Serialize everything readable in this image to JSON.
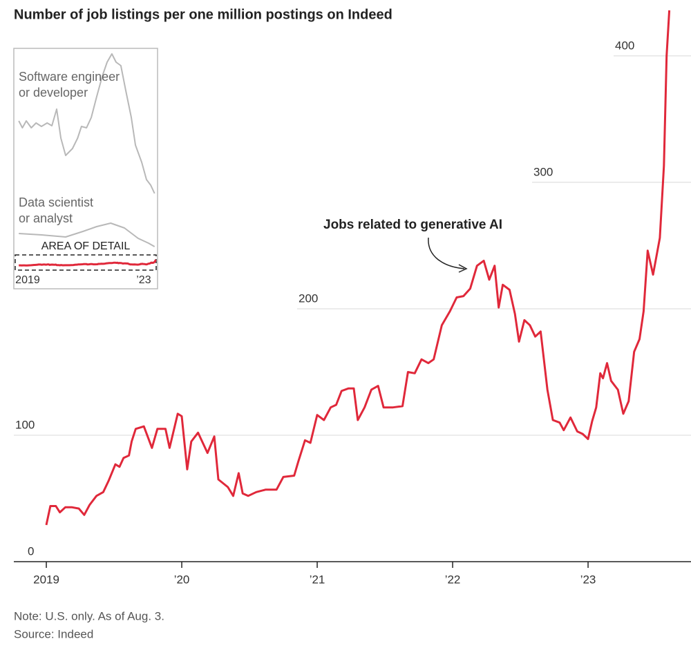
{
  "chart_data": [
    {
      "type": "line",
      "title": "Number of job listings per one million postings on Indeed",
      "note": "Note: U.S. only. As of Aug. 3.",
      "source": "Source: Indeed",
      "x": [
        2019.0,
        2019.03,
        2019.07,
        2019.1,
        2019.14,
        2019.19,
        2019.24,
        2019.28,
        2019.32,
        2019.37,
        2019.42,
        2019.46,
        2019.51,
        2019.54,
        2019.57,
        2019.61,
        2019.63,
        2019.66,
        2019.72,
        2019.78,
        2019.82,
        2019.88,
        2019.91,
        2019.97,
        2020.0,
        2020.04,
        2020.07,
        2020.12,
        2020.19,
        2020.24,
        2020.27,
        2020.34,
        2020.38,
        2020.42,
        2020.45,
        2020.49,
        2020.55,
        2020.62,
        2020.7,
        2020.75,
        2020.83,
        2020.86,
        2020.91,
        2020.95,
        2021.0,
        2021.05,
        2021.1,
        2021.14,
        2021.18,
        2021.23,
        2021.27,
        2021.3,
        2021.35,
        2021.4,
        2021.45,
        2021.49,
        2021.56,
        2021.63,
        2021.67,
        2021.72,
        2021.77,
        2021.82,
        2021.86,
        2021.92,
        2021.98,
        2022.03,
        2022.08,
        2022.13,
        2022.18,
        2022.23,
        2022.27,
        2022.31,
        2022.34,
        2022.37,
        2022.42,
        2022.46,
        2022.49,
        2022.53,
        2022.57,
        2022.61,
        2022.65,
        2022.7,
        2022.74,
        2022.79,
        2022.82,
        2022.87,
        2022.92,
        2022.96,
        2023.0,
        2023.03,
        2023.06,
        2023.09,
        2023.11,
        2023.14,
        2023.17,
        2023.22,
        2023.26,
        2023.3,
        2023.34,
        2023.38,
        2023.41,
        2023.44,
        2023.48,
        2023.53,
        2023.56,
        2023.58,
        2023.6
      ],
      "series": [
        {
          "name": "Jobs related to generative AI",
          "color": "#e0283a",
          "values": [
            29,
            44,
            44,
            39,
            43,
            43,
            42,
            37,
            45,
            52,
            55,
            64,
            77,
            75,
            82,
            84,
            95,
            105,
            107,
            90,
            105,
            105,
            90,
            117,
            115,
            73,
            95,
            102,
            86,
            99,
            65,
            59,
            52,
            70,
            54,
            52,
            55,
            57,
            57,
            67,
            68,
            79,
            96,
            94,
            116,
            112,
            122,
            124,
            135,
            137,
            137,
            112,
            122,
            136,
            139,
            122,
            122,
            123,
            150,
            149,
            160,
            157,
            160,
            187,
            198,
            209,
            210,
            216,
            234,
            238,
            223,
            234,
            201,
            219,
            215,
            196,
            174,
            191,
            187,
            178,
            182,
            136,
            112,
            110,
            104,
            114,
            103,
            101,
            97,
            111,
            122,
            149,
            145,
            157,
            143,
            136,
            117,
            127,
            166,
            176,
            198,
            246,
            227,
            256,
            313,
            400,
            436
          ]
        }
      ],
      "xlim": [
        2018.76,
        2023.76
      ],
      "ylim": [
        0,
        436
      ],
      "xticks": [
        2019,
        {
          "value": 2020,
          "label": "’20"
        },
        {
          "value": 2021,
          "label": "’21"
        },
        {
          "value": 2022,
          "label": "’22"
        },
        {
          "value": 2023,
          "label": "’23"
        }
      ],
      "yticks": [
        0,
        100,
        200,
        300,
        400
      ],
      "grid": true
    },
    {
      "type": "line",
      "detail_label": "AREA OF DETAIL",
      "series": [
        {
          "name": "Software engineer\nor developer",
          "color": "#b8b8b8",
          "x": [
            2019.0,
            2019.12,
            2019.25,
            2019.42,
            2019.58,
            2019.76,
            2019.95,
            2020.11,
            2020.27,
            2020.41,
            2020.57,
            2020.8,
            2020.97,
            2021.1,
            2021.27,
            2021.43,
            2021.61,
            2021.8,
            2021.96,
            2022.12,
            2022.26,
            2022.42,
            2022.58,
            2022.77,
            2022.91,
            2023.12,
            2023.28,
            2023.42,
            2023.55
          ],
          "values": [
            10500,
            10000,
            10500,
            10000,
            10350,
            10100,
            10350,
            10150,
            11350,
            9250,
            8000,
            8500,
            9250,
            10100,
            10000,
            10750,
            12250,
            13750,
            14750,
            15350,
            14750,
            14500,
            12750,
            10750,
            8750,
            7500,
            6250,
            5850,
            5250
          ]
        },
        {
          "name": "Data scientist\nor analyst",
          "color": "#b8b8b8",
          "x": [
            2019.0,
            2019.76,
            2020.57,
            2021.15,
            2021.61,
            2022.08,
            2022.54,
            2023.0,
            2023.35,
            2023.55
          ],
          "values": [
            2350,
            2250,
            2100,
            2500,
            2850,
            3100,
            2750,
            2000,
            1650,
            1400
          ]
        }
      ],
      "xlim": [
        2018.88,
        2023.65
      ],
      "ylim": [
        0,
        15650
      ],
      "xticks": [
        2019,
        {
          "value": 2023,
          "label": "’23"
        }
      ]
    }
  ]
}
